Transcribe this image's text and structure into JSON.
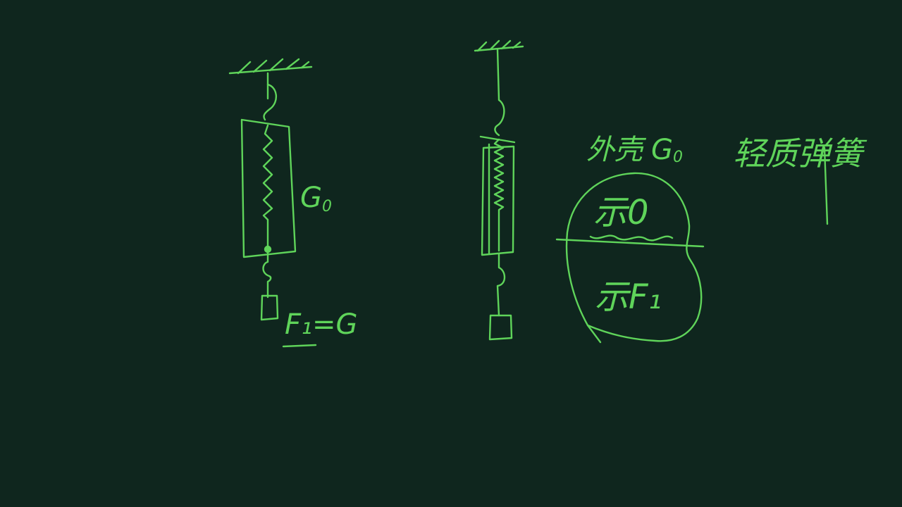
{
  "theme": {
    "background": "#0f261e",
    "ink": "#5fd45a"
  },
  "left_figure": {
    "shell_label": "G",
    "shell_label_sub": "0",
    "equation": "F₁=G"
  },
  "notes": {
    "shell_weight_prefix": "外壳",
    "shell_weight_symbol": "G",
    "shell_weight_sub": "0",
    "light_spring": "轻质弹簧"
  },
  "circle": {
    "top_label": "示0",
    "bottom_label": "示F₁"
  }
}
